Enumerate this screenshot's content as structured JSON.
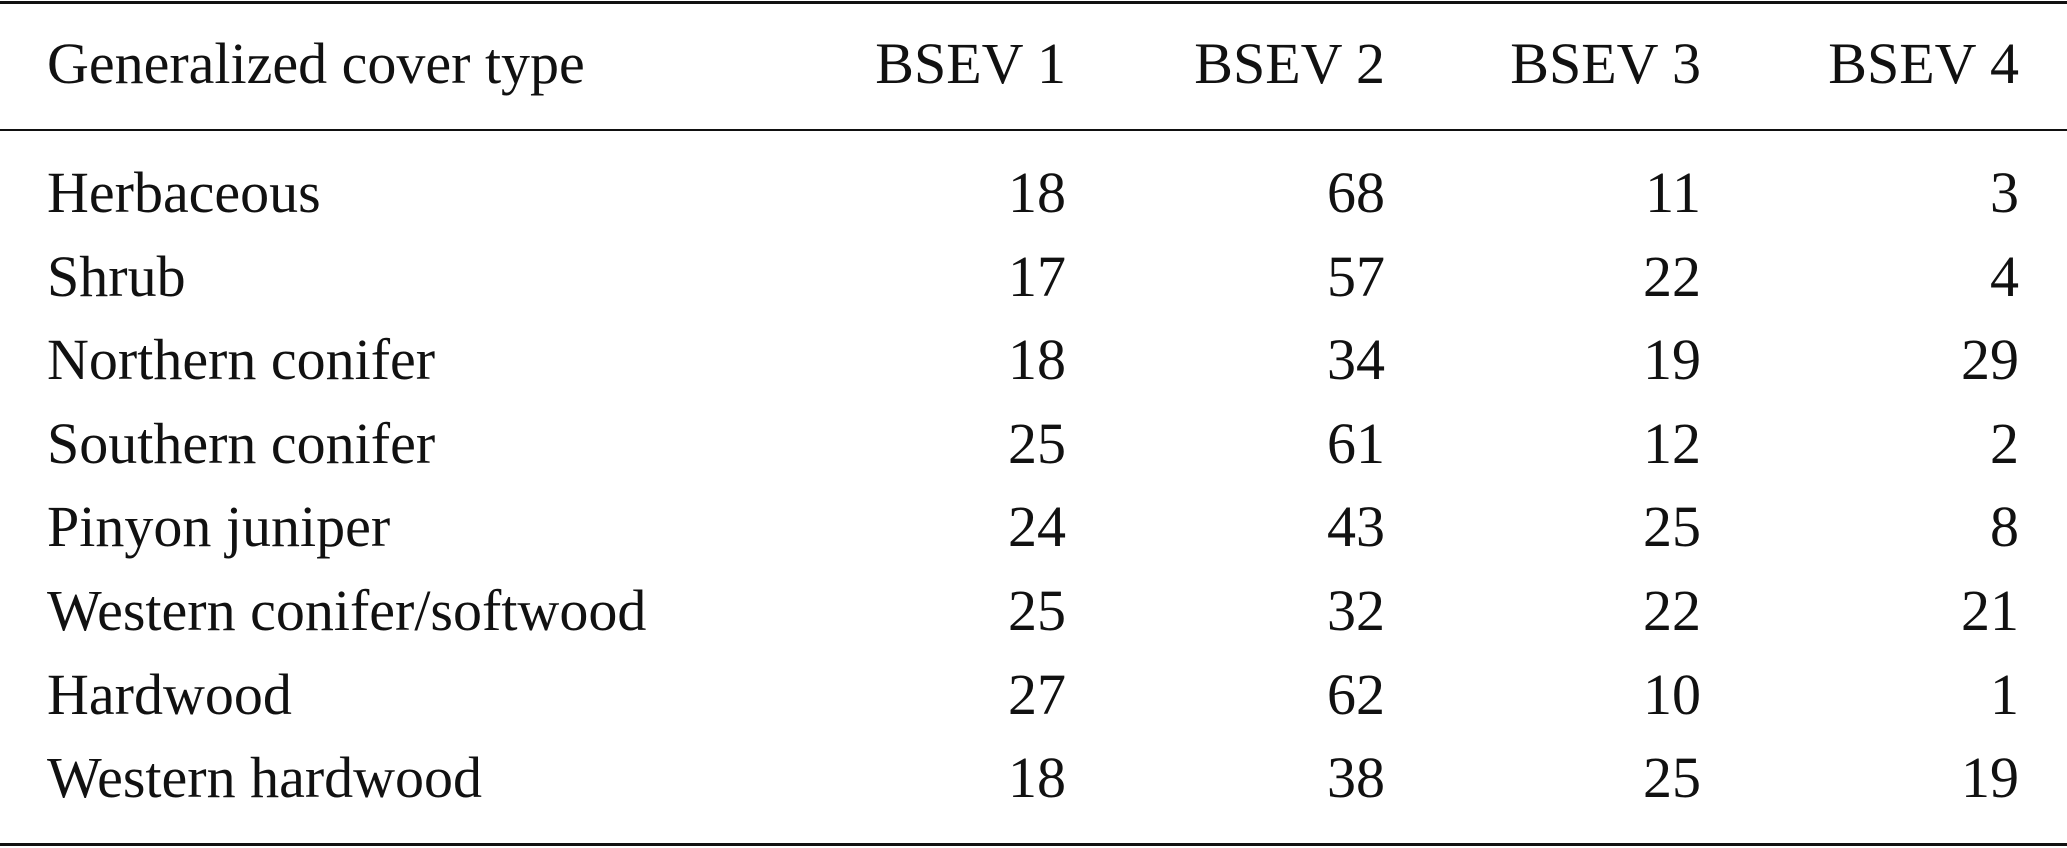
{
  "table": {
    "header": [
      "Generalized cover type",
      "BSEV 1",
      "BSEV 2",
      "BSEV 3",
      "BSEV 4"
    ],
    "rows": [
      [
        "Herbaceous",
        18,
        68,
        11,
        3
      ],
      [
        "Shrub",
        17,
        57,
        22,
        4
      ],
      [
        "Northern conifer",
        18,
        34,
        19,
        29
      ],
      [
        "Southern conifer",
        25,
        61,
        12,
        2
      ],
      [
        "Pinyon juniper",
        24,
        43,
        25,
        8
      ],
      [
        "Western conifer/softwood",
        25,
        32,
        22,
        21
      ],
      [
        "Hardwood",
        27,
        62,
        10,
        1
      ],
      [
        "Western hardwood",
        18,
        38,
        25,
        19
      ]
    ]
  }
}
